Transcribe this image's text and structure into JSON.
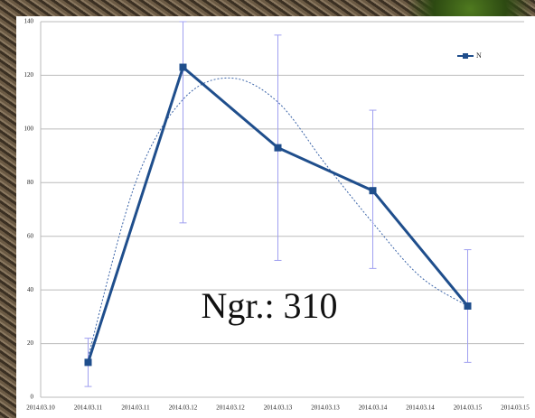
{
  "chart_data": {
    "type": "line",
    "xtick_labels": [
      "2014.03.10",
      "2014.03.11",
      "2014.03.11",
      "2014.03.12",
      "2014.03.12",
      "2014.03.13",
      "2014.03.13",
      "2014.03.14",
      "2014.03.14",
      "2014.03.15",
      "2014.03.15"
    ],
    "x": [
      "2014.03.11",
      "2014.03.12",
      "2014.03.13",
      "2014.03.14",
      "2014.03.15"
    ],
    "series": [
      {
        "name": "N",
        "color": "#1f4e8c",
        "values": [
          13,
          123,
          93,
          77,
          34
        ],
        "error_low": [
          4,
          65,
          51,
          48,
          13
        ],
        "error_high": [
          22,
          140,
          135,
          107,
          55
        ],
        "error_color": "#a0a0f0"
      }
    ],
    "trendline": {
      "color": "#3b64a8",
      "values": [
        null,
        15,
        80,
        111,
        119,
        110,
        87,
        65,
        45,
        34,
        null
      ]
    },
    "ylim": [
      0,
      140
    ],
    "yticks": [
      0,
      20,
      40,
      60,
      80,
      100,
      120,
      140
    ],
    "grid": true,
    "legend": "top-right",
    "annotation": "Ngr.: 310"
  }
}
